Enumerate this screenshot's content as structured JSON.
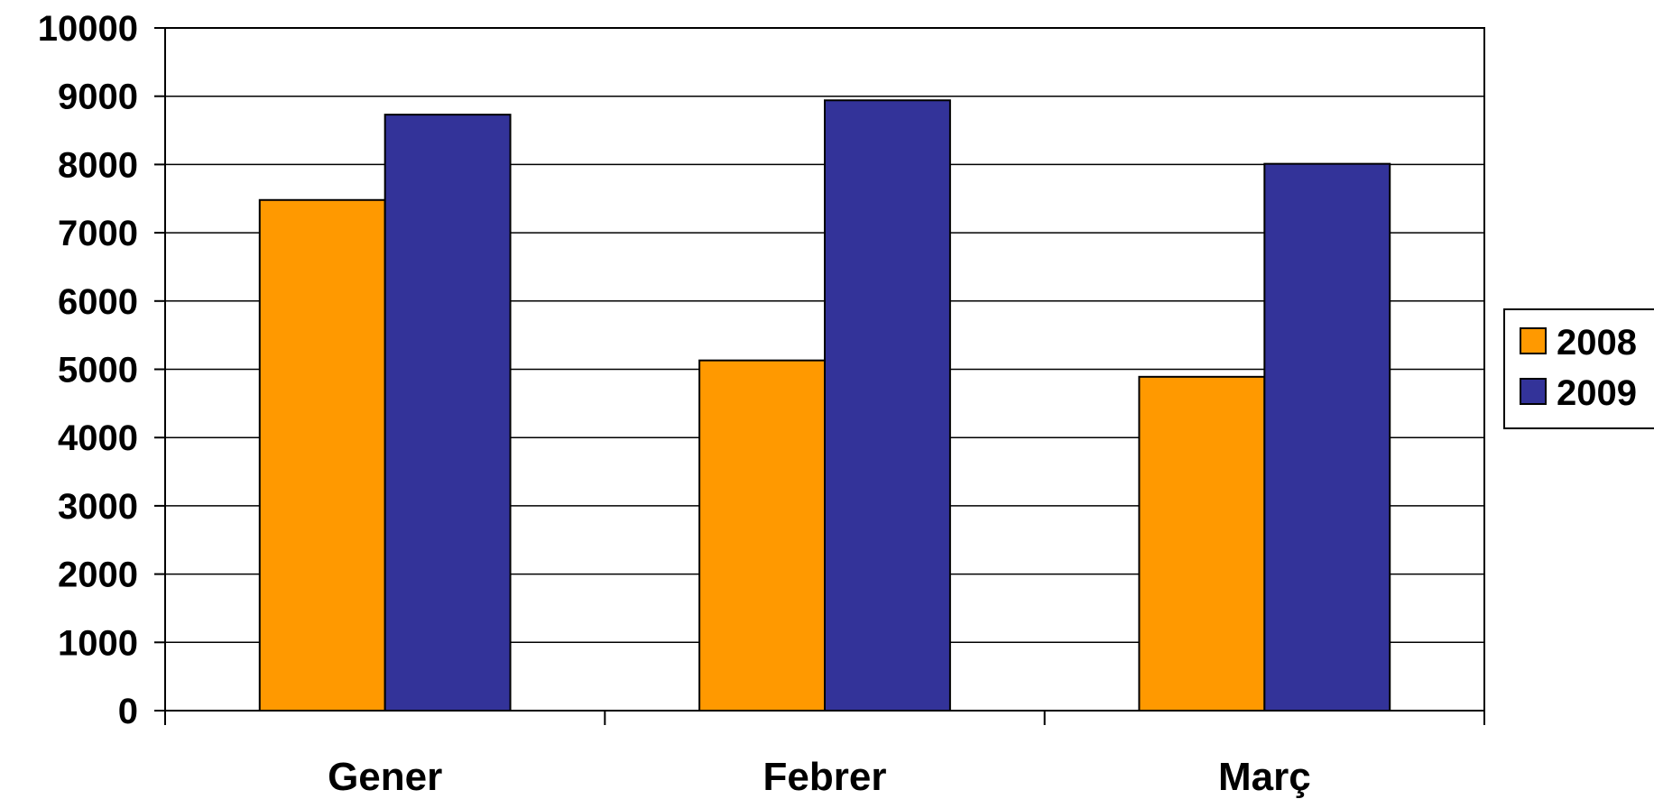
{
  "chart_data": {
    "type": "bar",
    "title": "",
    "xlabel": "",
    "ylabel": "",
    "categories": [
      "Gener",
      "Febrer",
      "Març"
    ],
    "series": [
      {
        "name": "2008",
        "color": "#FF9900",
        "values": [
          7480,
          5130,
          4890
        ]
      },
      {
        "name": "2009",
        "color": "#333399",
        "values": [
          8730,
          8940,
          8010
        ]
      }
    ],
    "ylim": [
      0,
      10000
    ],
    "yticks": [
      "0",
      "1000",
      "2000",
      "3000",
      "4000",
      "5000",
      "6000",
      "7000",
      "8000",
      "9000",
      "10000"
    ],
    "grid": true,
    "legend_position": "right"
  }
}
